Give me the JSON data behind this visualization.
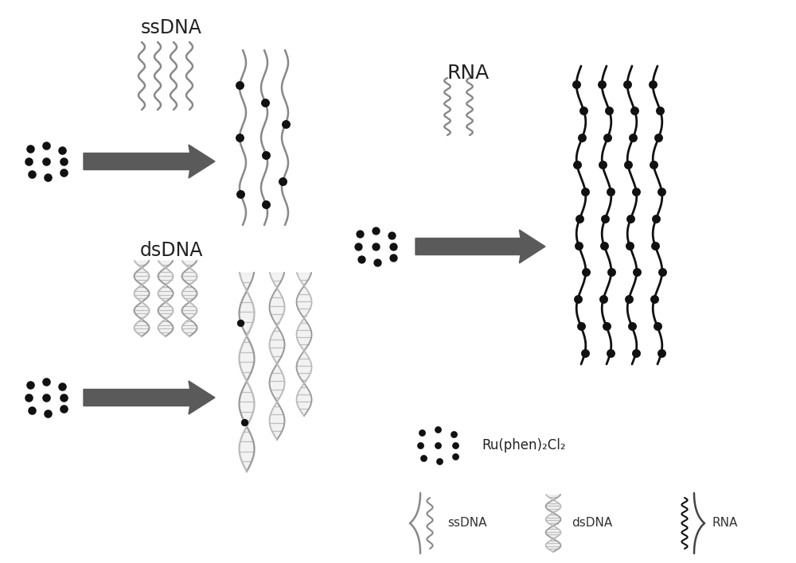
{
  "bg_color": "#ffffff",
  "arrow_color": "#5a5a5a",
  "dot_color": "#111111",
  "ssdna_color": "#888888",
  "dsdna_c1": "#999999",
  "dsdna_c2": "#bbbbbb",
  "dsdna_fill": "#cccccc",
  "rna_bound_color": "#111111",
  "label_ssdna": "ssDNA",
  "label_dsdna": "dsDNA",
  "label_rna": "RNA",
  "label_ru": "Ru(phen)₂Cl₂",
  "figsize": [
    10.0,
    7.08
  ]
}
